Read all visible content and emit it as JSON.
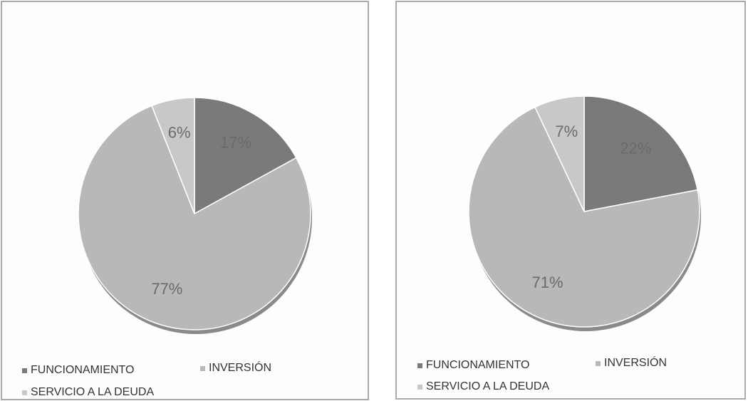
{
  "chart_data": [
    {
      "type": "pie",
      "categories": [
        "FUNCIONAMIENTO",
        "INVERSIÓN",
        "SERVICIO A LA DEUDA"
      ],
      "values": [
        17,
        77,
        6
      ],
      "value_labels": [
        "17%",
        "77%",
        "6%"
      ],
      "colors": [
        "#7a7a7a",
        "#b8b8b8",
        "#c8c8c8"
      ],
      "legend": "bottom"
    },
    {
      "type": "pie",
      "categories": [
        "FUNCIONAMIENTO",
        "INVERSIÓN",
        "SERVICIO A LA DEUDA"
      ],
      "values": [
        22,
        71,
        7
      ],
      "value_labels": [
        "22%",
        "71%",
        "7%"
      ],
      "colors": [
        "#7a7a7a",
        "#b8b8b8",
        "#c8c8c8"
      ],
      "legend": "bottom"
    }
  ]
}
